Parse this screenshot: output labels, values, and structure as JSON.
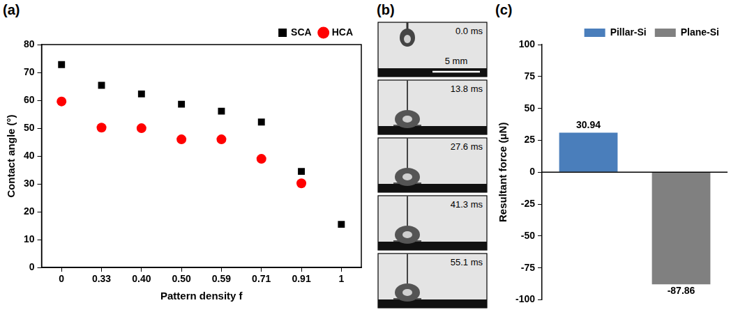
{
  "chart_data": [
    {
      "type": "scatter",
      "title": "(a)",
      "x_label": "Pattern density f",
      "y_label": "Contact angle (°)",
      "categories": [
        "0",
        "0.33",
        "0.40",
        "0.50",
        "0.59",
        "0.71",
        "0.91",
        "1"
      ],
      "series": [
        {
          "name": "SCA",
          "color": "#000000",
          "marker": "square",
          "values": [
            72.8,
            65.4,
            62.3,
            58.6,
            56.1,
            52.2,
            34.5,
            15.5
          ]
        },
        {
          "name": "HCA",
          "color": "#ff0000",
          "marker": "circle",
          "values": [
            59.6,
            50.2,
            50.0,
            46.0,
            46.0,
            39.0,
            30.2,
            null
          ]
        }
      ],
      "ylim": [
        0,
        80
      ],
      "yticks": [
        0,
        10,
        20,
        30,
        40,
        50,
        60,
        70,
        80
      ],
      "grid": false,
      "legend": "top-right"
    },
    {
      "type": "bar",
      "title": "(c)",
      "y_label": "Resultant force (μN)",
      "series": [
        {
          "name": "Pillar-Si",
          "color": "#4a7ebb",
          "values": [
            30.94
          ]
        },
        {
          "name": "Plane-Si",
          "color": "#808080",
          "values": [
            -87.86
          ]
        }
      ],
      "ylim": [
        -100,
        100
      ],
      "yticks": [
        -100,
        -75,
        -50,
        -25,
        0,
        25,
        50,
        75,
        100
      ],
      "grid": false,
      "legend": "top-right",
      "data_labels": true,
      "tick_labels": "y"
    }
  ],
  "image_sequence": {
    "title": "(b)",
    "frames": [
      "0.0 ms",
      "13.8 ms",
      "27.6 ms",
      "41.3 ms",
      "55.1 ms"
    ],
    "scale_bar": "5 mm"
  }
}
